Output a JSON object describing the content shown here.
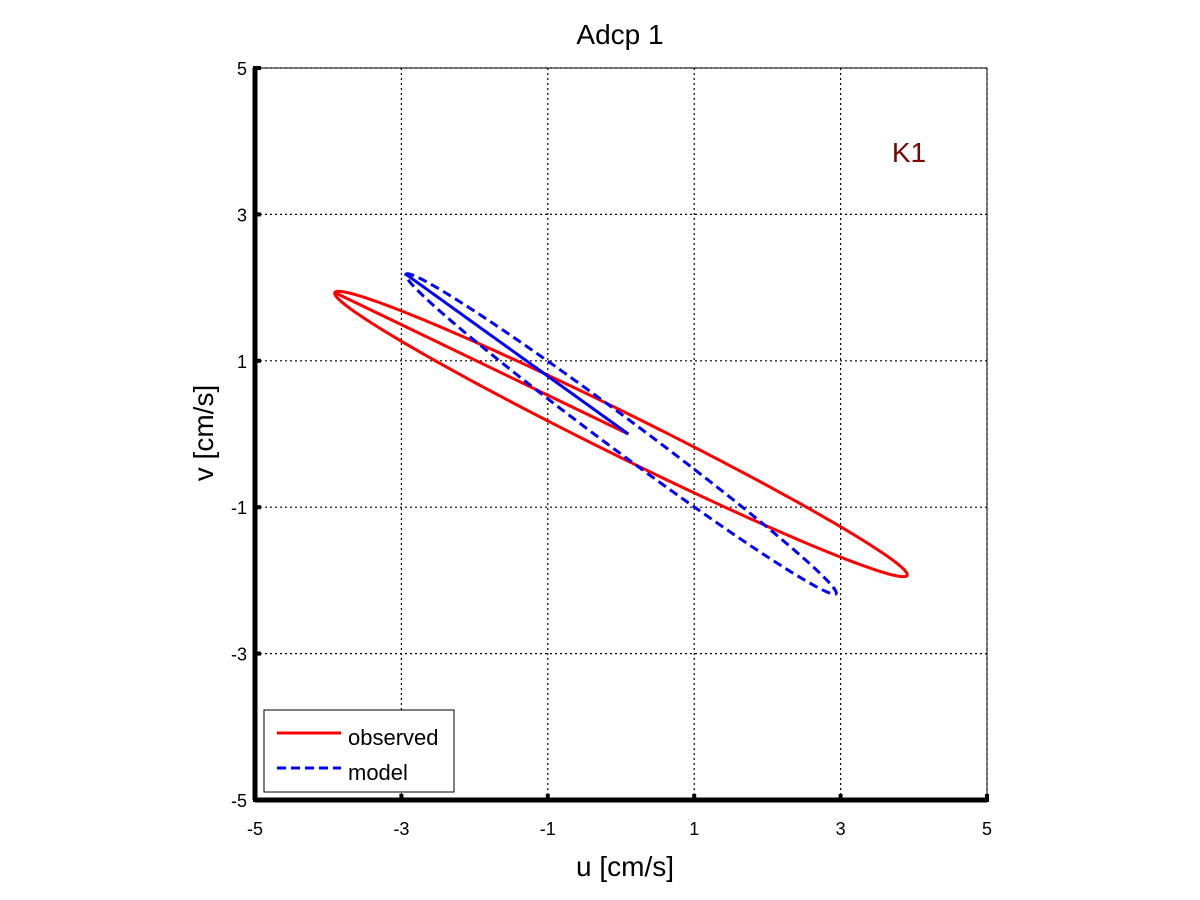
{
  "chart_data": {
    "type": "line",
    "title": "Adcp 1",
    "xlabel": "u [cm/s]",
    "ylabel": "v [cm/s]",
    "xlim": [
      -5,
      5
    ],
    "ylim": [
      -5,
      5
    ],
    "xticks": [
      -5,
      -3,
      -1,
      1,
      3,
      5
    ],
    "yticks": [
      -5,
      -3,
      -1,
      1,
      3,
      5
    ],
    "xtick_labels": [
      "-5",
      "-3",
      "-1",
      "1",
      "3",
      "5"
    ],
    "ytick_labels": [
      "-5",
      "-3",
      "-1",
      "1",
      "3",
      "5"
    ],
    "grid": true,
    "annotation": {
      "text": "K1",
      "x": 3.7,
      "y": 3.85,
      "color": "#800000"
    },
    "legend": {
      "placement": "bottom-left"
    },
    "series": [
      {
        "name": "observed",
        "color": "#ff0000",
        "style": "solid",
        "ellipse": {
          "center": [
            0,
            0
          ],
          "semi_major": 4.36,
          "semi_minor": 0.29,
          "angle_deg": -26.3,
          "start_phase_deg": 180,
          "end_phase_deg": 540,
          "start_point": [
            0.1,
            0.0
          ]
        }
      },
      {
        "name": "model",
        "color": "#0000ff",
        "style": "dashed",
        "ellipse": {
          "center": [
            0,
            0
          ],
          "semi_major": 3.66,
          "semi_minor": 0.22,
          "angle_deg": -36.6,
          "start_phase_deg": 180,
          "end_phase_deg": 540,
          "start_point": [
            0.1,
            0.0
          ]
        }
      }
    ]
  }
}
